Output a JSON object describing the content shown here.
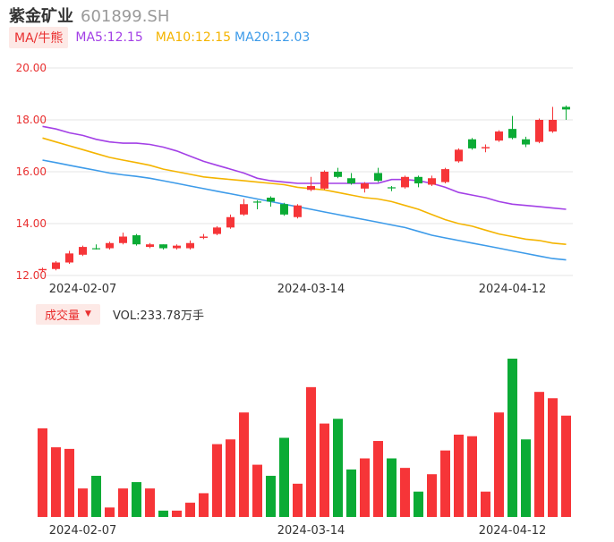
{
  "header": {
    "name": "紫金矿业",
    "code": "601899.SH"
  },
  "ma_row": {
    "tab_label": "MA/牛熊",
    "ma5": "MA5:12.15",
    "ma10": "MA10:12.15",
    "ma20": "MA20:12.03"
  },
  "volume_row": {
    "tab_label": "成交量",
    "caret": "▼",
    "vol_text": "VOL:233.78万手"
  },
  "colors": {
    "up": "#f63538",
    "down": "#0bab35",
    "ma5": "#a340e6",
    "ma10": "#f4b400",
    "ma20": "#3d9be9",
    "axis_label": "#e93030",
    "date_label": "#333333",
    "grid": "#e6e6e6"
  },
  "chart_data": [
    {
      "type": "candlestick",
      "y_ticks": [
        "20.00",
        "18.00",
        "16.00",
        "14.00",
        "12.00"
      ],
      "ylim": [
        12,
        20
      ],
      "x_tick_labels": [
        {
          "index": 3,
          "label": "2024-02-07"
        },
        {
          "index": 20,
          "label": "2024-03-14"
        },
        {
          "index": 35,
          "label": "2024-04-12"
        }
      ],
      "candles": [
        {
          "o": 12.2,
          "c": 12.25,
          "h": 12.3,
          "l": 12.15,
          "dir": "up"
        },
        {
          "o": 12.25,
          "c": 12.5,
          "h": 12.55,
          "l": 12.2,
          "dir": "up"
        },
        {
          "o": 12.5,
          "c": 12.85,
          "h": 12.95,
          "l": 12.45,
          "dir": "up"
        },
        {
          "o": 12.8,
          "c": 13.1,
          "h": 13.15,
          "l": 12.75,
          "dir": "up"
        },
        {
          "o": 13.05,
          "c": 13.05,
          "h": 13.2,
          "l": 13.0,
          "dir": "down"
        },
        {
          "o": 13.05,
          "c": 13.25,
          "h": 13.3,
          "l": 13.0,
          "dir": "up"
        },
        {
          "o": 13.25,
          "c": 13.5,
          "h": 13.65,
          "l": 13.2,
          "dir": "up"
        },
        {
          "o": 13.55,
          "c": 13.2,
          "h": 13.6,
          "l": 13.15,
          "dir": "down"
        },
        {
          "o": 13.1,
          "c": 13.2,
          "h": 13.25,
          "l": 13.05,
          "dir": "up"
        },
        {
          "o": 13.2,
          "c": 13.05,
          "h": 13.2,
          "l": 13.0,
          "dir": "down"
        },
        {
          "o": 13.05,
          "c": 13.15,
          "h": 13.2,
          "l": 13.0,
          "dir": "up"
        },
        {
          "o": 13.05,
          "c": 13.25,
          "h": 13.35,
          "l": 13.0,
          "dir": "up"
        },
        {
          "o": 13.45,
          "c": 13.5,
          "h": 13.6,
          "l": 13.4,
          "dir": "up"
        },
        {
          "o": 13.6,
          "c": 13.85,
          "h": 13.9,
          "l": 13.55,
          "dir": "up"
        },
        {
          "o": 13.85,
          "c": 14.25,
          "h": 14.35,
          "l": 13.8,
          "dir": "up"
        },
        {
          "o": 14.35,
          "c": 14.75,
          "h": 14.95,
          "l": 14.3,
          "dir": "up"
        },
        {
          "o": 14.85,
          "c": 14.85,
          "h": 14.9,
          "l": 14.55,
          "dir": "down"
        },
        {
          "o": 15.0,
          "c": 14.85,
          "h": 15.05,
          "l": 14.65,
          "dir": "down"
        },
        {
          "o": 14.75,
          "c": 14.35,
          "h": 14.8,
          "l": 14.3,
          "dir": "down"
        },
        {
          "o": 14.25,
          "c": 14.7,
          "h": 14.75,
          "l": 14.2,
          "dir": "up"
        },
        {
          "o": 15.3,
          "c": 15.45,
          "h": 15.8,
          "l": 15.25,
          "dir": "up"
        },
        {
          "o": 15.35,
          "c": 16.0,
          "h": 16.05,
          "l": 15.3,
          "dir": "up"
        },
        {
          "o": 16.0,
          "c": 15.8,
          "h": 16.15,
          "l": 15.75,
          "dir": "down"
        },
        {
          "o": 15.75,
          "c": 15.55,
          "h": 15.95,
          "l": 15.5,
          "dir": "down"
        },
        {
          "o": 15.35,
          "c": 15.55,
          "h": 15.6,
          "l": 15.2,
          "dir": "up"
        },
        {
          "o": 15.95,
          "c": 15.65,
          "h": 16.15,
          "l": 15.6,
          "dir": "down"
        },
        {
          "o": 15.4,
          "c": 15.4,
          "h": 15.45,
          "l": 15.25,
          "dir": "down"
        },
        {
          "o": 15.4,
          "c": 15.8,
          "h": 15.85,
          "l": 15.35,
          "dir": "up"
        },
        {
          "o": 15.8,
          "c": 15.55,
          "h": 15.85,
          "l": 15.4,
          "dir": "down"
        },
        {
          "o": 15.5,
          "c": 15.75,
          "h": 15.85,
          "l": 15.45,
          "dir": "up"
        },
        {
          "o": 15.6,
          "c": 16.1,
          "h": 16.15,
          "l": 15.55,
          "dir": "up"
        },
        {
          "o": 16.4,
          "c": 16.85,
          "h": 16.9,
          "l": 16.35,
          "dir": "up"
        },
        {
          "o": 17.25,
          "c": 16.9,
          "h": 17.3,
          "l": 16.85,
          "dir": "down"
        },
        {
          "o": 16.9,
          "c": 16.95,
          "h": 17.05,
          "l": 16.75,
          "dir": "up"
        },
        {
          "o": 17.2,
          "c": 17.55,
          "h": 17.6,
          "l": 17.15,
          "dir": "up"
        },
        {
          "o": 17.65,
          "c": 17.3,
          "h": 18.15,
          "l": 17.25,
          "dir": "down"
        },
        {
          "o": 17.25,
          "c": 17.05,
          "h": 17.35,
          "l": 16.95,
          "dir": "down"
        },
        {
          "o": 17.15,
          "c": 18.0,
          "h": 18.05,
          "l": 17.1,
          "dir": "up"
        },
        {
          "o": 17.55,
          "c": 18.0,
          "h": 18.5,
          "l": 17.5,
          "dir": "up"
        },
        {
          "o": 18.5,
          "c": 18.4,
          "h": 18.55,
          "l": 18.0,
          "dir": "down"
        }
      ],
      "ma5": [
        17.75,
        17.65,
        17.5,
        17.4,
        17.25,
        17.15,
        17.1,
        17.1,
        17.05,
        16.95,
        16.8,
        16.6,
        16.4,
        16.25,
        16.1,
        15.95,
        15.75,
        15.65,
        15.6,
        15.55,
        15.55,
        15.55,
        15.55,
        15.55,
        15.55,
        15.56,
        15.7,
        15.7,
        15.65,
        15.55,
        15.4,
        15.2,
        15.1,
        15.0,
        14.85,
        14.75,
        14.7,
        14.65,
        14.6,
        14.55
      ],
      "ma10": [
        17.3,
        17.15,
        17.0,
        16.85,
        16.7,
        16.55,
        16.45,
        16.35,
        16.25,
        16.1,
        16.0,
        15.9,
        15.8,
        15.75,
        15.7,
        15.65,
        15.6,
        15.55,
        15.5,
        15.4,
        15.35,
        15.3,
        15.2,
        15.1,
        15.0,
        14.95,
        14.85,
        14.7,
        14.55,
        14.35,
        14.15,
        14.0,
        13.9,
        13.75,
        13.6,
        13.5,
        13.4,
        13.35,
        13.25,
        13.2
      ],
      "ma20": [
        16.45,
        16.35,
        16.25,
        16.15,
        16.05,
        15.95,
        15.88,
        15.82,
        15.75,
        15.65,
        15.55,
        15.45,
        15.35,
        15.25,
        15.15,
        15.05,
        14.95,
        14.85,
        14.75,
        14.65,
        14.55,
        14.45,
        14.35,
        14.25,
        14.15,
        14.05,
        13.95,
        13.85,
        13.7,
        13.55,
        13.45,
        13.35,
        13.25,
        13.15,
        13.05,
        12.95,
        12.85,
        12.75,
        12.65,
        12.6
      ]
    },
    {
      "type": "bar",
      "name": "成交量",
      "x_tick_labels": [
        {
          "index": 3,
          "label": "2024-02-07"
        },
        {
          "index": 20,
          "label": "2024-03-14"
        },
        {
          "index": 35,
          "label": "2024-04-12"
        }
      ],
      "volume": [
        {
          "v": 0.56,
          "dir": "up"
        },
        {
          "v": 0.44,
          "dir": "up"
        },
        {
          "v": 0.43,
          "dir": "up"
        },
        {
          "v": 0.18,
          "dir": "up"
        },
        {
          "v": 0.26,
          "dir": "down"
        },
        {
          "v": 0.06,
          "dir": "up"
        },
        {
          "v": 0.18,
          "dir": "up"
        },
        {
          "v": 0.22,
          "dir": "down"
        },
        {
          "v": 0.18,
          "dir": "up"
        },
        {
          "v": 0.04,
          "dir": "down"
        },
        {
          "v": 0.04,
          "dir": "up"
        },
        {
          "v": 0.09,
          "dir": "up"
        },
        {
          "v": 0.15,
          "dir": "up"
        },
        {
          "v": 0.46,
          "dir": "up"
        },
        {
          "v": 0.49,
          "dir": "up"
        },
        {
          "v": 0.66,
          "dir": "up"
        },
        {
          "v": 0.33,
          "dir": "up"
        },
        {
          "v": 0.26,
          "dir": "down"
        },
        {
          "v": 0.5,
          "dir": "down"
        },
        {
          "v": 0.21,
          "dir": "up"
        },
        {
          "v": 0.82,
          "dir": "up"
        },
        {
          "v": 0.59,
          "dir": "up"
        },
        {
          "v": 0.62,
          "dir": "down"
        },
        {
          "v": 0.3,
          "dir": "down"
        },
        {
          "v": 0.37,
          "dir": "up"
        },
        {
          "v": 0.48,
          "dir": "up"
        },
        {
          "v": 0.37,
          "dir": "down"
        },
        {
          "v": 0.31,
          "dir": "up"
        },
        {
          "v": 0.16,
          "dir": "down"
        },
        {
          "v": 0.27,
          "dir": "up"
        },
        {
          "v": 0.42,
          "dir": "up"
        },
        {
          "v": 0.52,
          "dir": "up"
        },
        {
          "v": 0.51,
          "dir": "up"
        },
        {
          "v": 0.16,
          "dir": "up"
        },
        {
          "v": 0.66,
          "dir": "up"
        },
        {
          "v": 1.0,
          "dir": "down"
        },
        {
          "v": 0.49,
          "dir": "down"
        },
        {
          "v": 0.79,
          "dir": "up"
        },
        {
          "v": 0.75,
          "dir": "up"
        },
        {
          "v": 0.64,
          "dir": "up"
        }
      ]
    }
  ]
}
